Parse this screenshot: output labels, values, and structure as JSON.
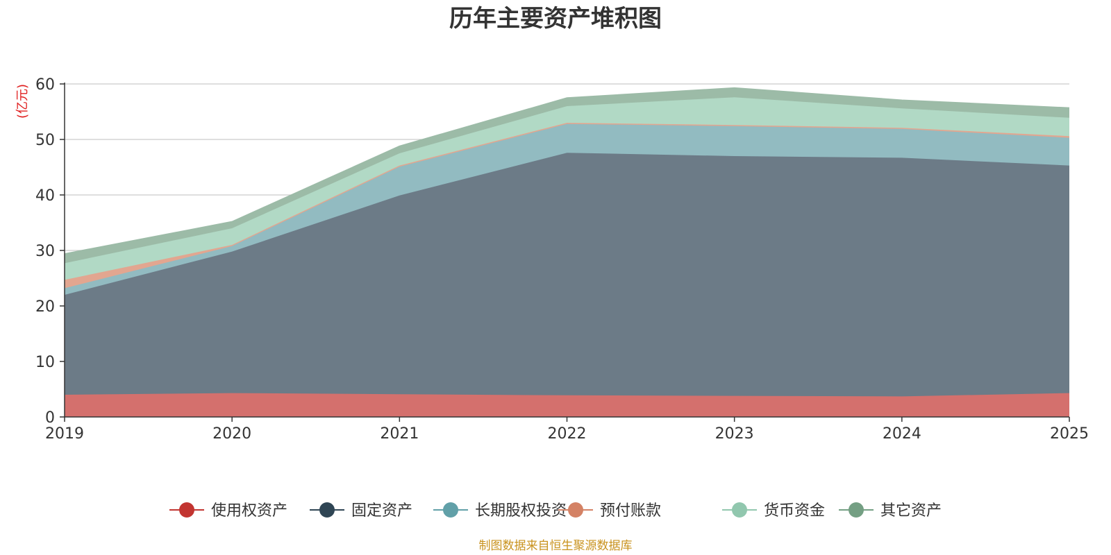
{
  "chart_data": {
    "type": "area",
    "stacked": true,
    "title": "历年主要资产堆积图",
    "unit_label": "(亿元)",
    "x": [
      "2019",
      "2020",
      "2021",
      "2022",
      "2023",
      "2024",
      "2025"
    ],
    "y_ticks": [
      "0",
      "10",
      "20",
      "30",
      "40",
      "50",
      "60"
    ],
    "ylim": [
      0,
      60
    ],
    "grid": true,
    "legend_position": "bottom",
    "series": [
      {
        "name": "使用权资产",
        "color": "#c23531",
        "fill": "#d4706d",
        "values": [
          4.0,
          4.3,
          4.1,
          3.9,
          3.8,
          3.7,
          4.3
        ]
      },
      {
        "name": "固定资产",
        "color": "#2f4554",
        "fill": "#6c7b87",
        "values": [
          18.0,
          25.5,
          35.8,
          43.7,
          43.2,
          43.0,
          41.0
        ]
      },
      {
        "name": "长期股权投资",
        "color": "#61a0a8",
        "fill": "#92bbc1",
        "values": [
          1.2,
          1.0,
          5.2,
          5.2,
          5.4,
          5.2,
          5.0
        ]
      },
      {
        "name": "预付账款",
        "color": "#d48265",
        "fill": "#e2a690",
        "values": [
          1.5,
          0.2,
          0.2,
          0.2,
          0.2,
          0.2,
          0.3
        ]
      },
      {
        "name": "货币资金",
        "color": "#91c7ae",
        "fill": "#b1d9c5",
        "values": [
          3.0,
          3.0,
          2.2,
          3.0,
          5.0,
          3.5,
          3.3
        ]
      },
      {
        "name": "其它资产",
        "color": "#749f83",
        "fill": "#9cbba7",
        "values": [
          1.7,
          1.2,
          1.3,
          1.5,
          1.7,
          1.5,
          1.8
        ]
      }
    ],
    "source": "制图数据来自恒生聚源数据库"
  }
}
